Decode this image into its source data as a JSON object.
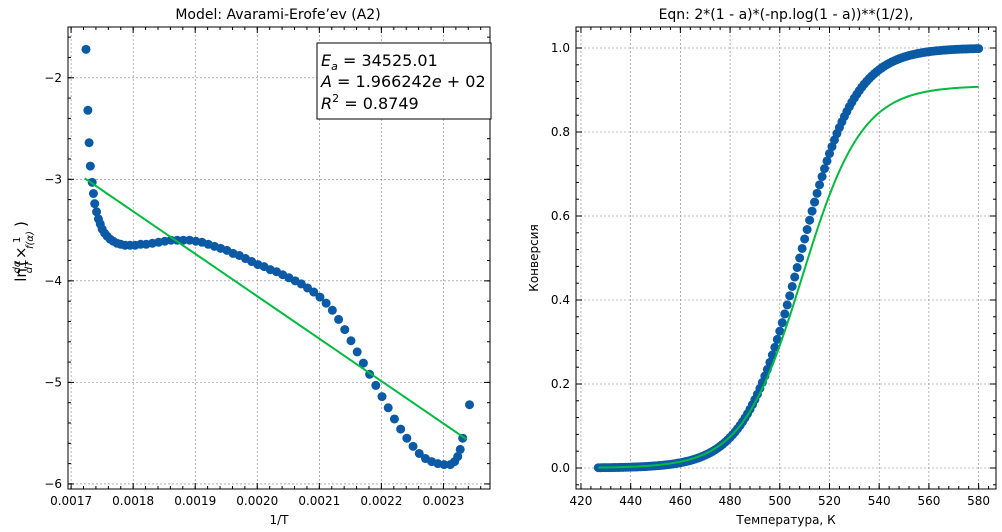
{
  "chart_data": [
    {
      "type": "scatter",
      "title": "Model: Avarami-Erofe’ev (A2)",
      "xlabel": "1/T",
      "ylabel": "ln(dα/dT × 1/f(α))",
      "xlim": [
        0.001695,
        0.002375
      ],
      "ylim": [
        -6.05,
        -1.5
      ],
      "xticks": [
        "0.0017",
        "0.0018",
        "0.0019",
        "0.0020",
        "0.0021",
        "0.0022",
        "0.0023"
      ],
      "yticks": [
        "−6",
        "−5",
        "−4",
        "−3",
        "−2"
      ],
      "xtick_values": [
        0.0017,
        0.0018,
        0.0019,
        0.002,
        0.0021,
        0.0022,
        0.0023
      ],
      "ytick_values": [
        -6,
        -5,
        -4,
        -3,
        -2
      ],
      "grid": true,
      "series": [
        {
          "kind": "scatter",
          "color": "#0b5aa5",
          "points": [
            [
              0.001724,
              -1.72
            ],
            [
              0.001727,
              -2.32
            ],
            [
              0.001729,
              -2.64
            ],
            [
              0.001731,
              -2.87
            ],
            [
              0.001734,
              -3.03
            ],
            [
              0.001736,
              -3.14
            ],
            [
              0.001738,
              -3.24
            ],
            [
              0.001741,
              -3.32
            ],
            [
              0.001744,
              -3.39
            ],
            [
              0.001747,
              -3.44
            ],
            [
              0.00175,
              -3.49
            ],
            [
              0.001754,
              -3.53
            ],
            [
              0.001758,
              -3.56
            ],
            [
              0.001763,
              -3.59
            ],
            [
              0.001768,
              -3.61
            ],
            [
              0.001774,
              -3.63
            ],
            [
              0.00178,
              -3.64
            ],
            [
              0.001787,
              -3.65
            ],
            [
              0.001795,
              -3.65
            ],
            [
              0.001803,
              -3.65
            ],
            [
              0.001812,
              -3.64
            ],
            [
              0.001821,
              -3.64
            ],
            [
              0.001831,
              -3.63
            ],
            [
              0.001841,
              -3.62
            ],
            [
              0.001851,
              -3.61
            ],
            [
              0.001861,
              -3.6
            ],
            [
              0.001871,
              -3.6
            ],
            [
              0.001881,
              -3.6
            ],
            [
              0.001891,
              -3.6
            ],
            [
              0.001901,
              -3.61
            ],
            [
              0.001911,
              -3.62
            ],
            [
              0.001921,
              -3.64
            ],
            [
              0.001931,
              -3.66
            ],
            [
              0.001941,
              -3.68
            ],
            [
              0.001951,
              -3.7
            ],
            [
              0.001961,
              -3.73
            ],
            [
              0.001971,
              -3.75
            ],
            [
              0.001981,
              -3.78
            ],
            [
              0.001991,
              -3.81
            ],
            [
              0.002001,
              -3.84
            ],
            [
              0.002011,
              -3.86
            ],
            [
              0.002021,
              -3.89
            ],
            [
              0.002031,
              -3.91
            ],
            [
              0.002041,
              -3.94
            ],
            [
              0.002051,
              -3.97
            ],
            [
              0.002061,
              -4.0
            ],
            [
              0.002071,
              -4.03
            ],
            [
              0.002081,
              -4.07
            ],
            [
              0.002091,
              -4.11
            ],
            [
              0.002101,
              -4.16
            ],
            [
              0.002111,
              -4.22
            ],
            [
              0.002121,
              -4.29
            ],
            [
              0.002131,
              -4.38
            ],
            [
              0.002141,
              -4.48
            ],
            [
              0.002151,
              -4.59
            ],
            [
              0.002161,
              -4.7
            ],
            [
              0.002171,
              -4.81
            ],
            [
              0.002181,
              -4.92
            ],
            [
              0.002191,
              -5.03
            ],
            [
              0.002201,
              -5.14
            ],
            [
              0.002211,
              -5.25
            ],
            [
              0.002221,
              -5.36
            ],
            [
              0.002231,
              -5.46
            ],
            [
              0.002241,
              -5.55
            ],
            [
              0.002251,
              -5.63
            ],
            [
              0.002261,
              -5.7
            ],
            [
              0.002271,
              -5.75
            ],
            [
              0.002281,
              -5.78
            ],
            [
              0.002291,
              -5.8
            ],
            [
              0.002301,
              -5.81
            ],
            [
              0.002311,
              -5.81
            ],
            [
              0.002318,
              -5.78
            ],
            [
              0.002323,
              -5.73
            ],
            [
              0.002327,
              -5.66
            ],
            [
              0.002331,
              -5.55
            ],
            [
              0.002342,
              -5.22
            ]
          ]
        },
        {
          "kind": "line",
          "color": "#00bb3f",
          "points": [
            [
              0.001722,
              -2.99
            ],
            [
              0.002337,
              -5.56
            ]
          ]
        }
      ],
      "annotation": {
        "ea_symbol": "E",
        "ea_subscript": "a",
        "ea_value": " = 34525.01",
        "a_symbol": "A",
        "a_value": " = 1.966242",
        "a_exp_symbol": "e",
        "a_exp_value": " + 02",
        "r2_symbol": "R",
        "r2_sup": "2",
        "r2_value": " = 0.8749"
      }
    },
    {
      "type": "scatter",
      "title": "Eqn: 2*(1 - a)*(-np.log(1 - a))**(1/2),",
      "xlabel": "Температура, К",
      "ylabel": "Конверсия",
      "xlim": [
        418,
        587
      ],
      "ylim": [
        -0.05,
        1.05
      ],
      "xticks": [
        "420",
        "440",
        "460",
        "480",
        "500",
        "520",
        "540",
        "560",
        "580"
      ],
      "yticks": [
        "0.0",
        "0.2",
        "0.4",
        "0.6",
        "0.8",
        "1.0"
      ],
      "xtick_values": [
        420,
        440,
        460,
        480,
        500,
        520,
        540,
        560,
        580
      ],
      "ytick_values": [
        0,
        0.2,
        0.4,
        0.6,
        0.8,
        1.0
      ],
      "grid": true,
      "series": [
        {
          "kind": "scatter",
          "color": "#0b5aa5",
          "x_start": 427,
          "x_end": 580,
          "x_step": 1,
          "sigmoid": {
            "center": 508,
            "scale": 11.0,
            "max": 1.0
          }
        },
        {
          "kind": "line",
          "color": "#00bb3f",
          "x_start": 427,
          "x_end": 580,
          "x_step": 1,
          "sigmoid": {
            "center": 509,
            "scale": 12.0,
            "max": 0.91
          }
        }
      ]
    }
  ]
}
